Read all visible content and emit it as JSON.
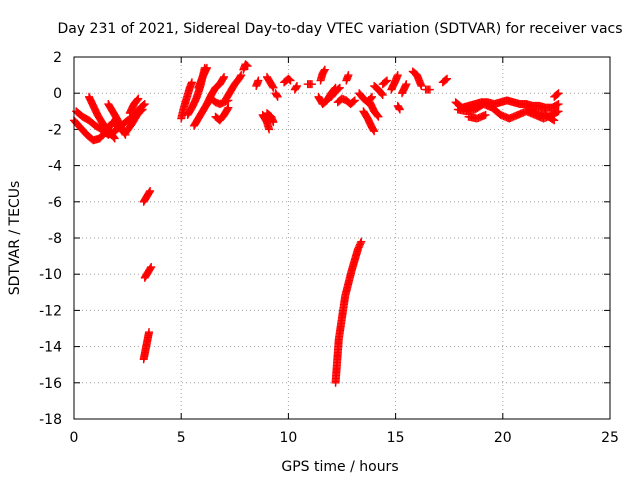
{
  "chart_data": {
    "type": "scatter",
    "title": "Day 231 of 2021, Sidereal Day-to-day VTEC variation (SDTVAR) for receiver vacs",
    "xlabel": "GPS time / hours",
    "ylabel": "SDTVAR / TECUs",
    "xlim": [
      0,
      25
    ],
    "ylim": [
      -18,
      2
    ],
    "x_ticks": [
      0,
      5,
      10,
      15,
      20,
      25
    ],
    "y_ticks": [
      -18,
      -16,
      -14,
      -12,
      -10,
      -8,
      -6,
      -4,
      -2,
      0,
      2
    ],
    "grid": true,
    "marker": "plus",
    "colors": {
      "series": "#ff0000",
      "grid": "#a0a0a0",
      "axes": "#000000"
    },
    "series": [
      {
        "name": "SDTVAR",
        "segments": [
          [
            [
              0.0,
              -1.5
            ],
            [
              0.3,
              -1.9
            ],
            [
              0.6,
              -2.3
            ],
            [
              0.9,
              -2.6
            ],
            [
              1.2,
              -2.5
            ],
            [
              1.5,
              -2.1
            ],
            [
              1.8,
              -1.6
            ],
            [
              2.1,
              -1.9
            ],
            [
              2.4,
              -2.2
            ],
            [
              2.7,
              -1.7
            ],
            [
              3.0,
              -1.1
            ],
            [
              3.2,
              -0.9
            ]
          ],
          [
            [
              0.1,
              -1.0
            ],
            [
              0.4,
              -1.3
            ],
            [
              0.7,
              -1.5
            ],
            [
              1.0,
              -1.8
            ],
            [
              1.3,
              -2.0
            ],
            [
              1.6,
              -2.3
            ],
            [
              1.9,
              -2.1
            ],
            [
              2.2,
              -1.8
            ],
            [
              2.5,
              -1.5
            ],
            [
              2.8,
              -1.3
            ],
            [
              3.1,
              -0.8
            ],
            [
              3.3,
              -0.6
            ]
          ],
          [
            [
              0.7,
              -0.2
            ],
            [
              0.9,
              -0.7
            ],
            [
              1.1,
              -1.2
            ],
            [
              1.3,
              -1.6
            ],
            [
              1.5,
              -1.9
            ],
            [
              1.7,
              -2.2
            ],
            [
              1.9,
              -2.5
            ]
          ],
          [
            [
              1.6,
              -0.6
            ],
            [
              1.8,
              -1.0
            ],
            [
              2.0,
              -1.4
            ],
            [
              2.2,
              -1.9
            ],
            [
              2.4,
              -2.3
            ]
          ],
          [
            [
              2.6,
              -1.1
            ],
            [
              2.8,
              -0.6
            ],
            [
              3.0,
              -0.3
            ]
          ],
          [
            [
              3.25,
              -6.0
            ],
            [
              3.35,
              -5.8
            ],
            [
              3.45,
              -5.6
            ],
            [
              3.55,
              -5.4
            ]
          ],
          [
            [
              3.3,
              -10.2
            ],
            [
              3.4,
              -10.0
            ],
            [
              3.5,
              -9.8
            ],
            [
              3.6,
              -9.6
            ]
          ],
          [
            [
              3.25,
              -14.7
            ],
            [
              3.3,
              -14.4
            ],
            [
              3.35,
              -14.1
            ],
            [
              3.4,
              -13.8
            ],
            [
              3.45,
              -13.5
            ],
            [
              3.5,
              -13.2
            ]
          ],
          [
            [
              5.0,
              -1.4
            ],
            [
              5.1,
              -0.9
            ],
            [
              5.2,
              -0.5
            ],
            [
              5.3,
              -0.1
            ],
            [
              5.4,
              0.3
            ],
            [
              5.5,
              0.6
            ]
          ],
          [
            [
              5.3,
              -1.2
            ],
            [
              5.5,
              -0.8
            ],
            [
              5.7,
              -0.3
            ],
            [
              5.9,
              0.4
            ],
            [
              6.0,
              0.9
            ],
            [
              6.2,
              1.4
            ]
          ],
          [
            [
              5.6,
              -1.8
            ],
            [
              5.8,
              -1.4
            ],
            [
              6.0,
              -1.0
            ],
            [
              6.2,
              -0.6
            ]
          ],
          [
            [
              5.8,
              0.3
            ],
            [
              6.0,
              0.9
            ],
            [
              6.1,
              1.4
            ]
          ],
          [
            [
              6.4,
              -0.3
            ],
            [
              6.6,
              -0.5
            ],
            [
              6.8,
              -0.6
            ],
            [
              7.0,
              -0.5
            ],
            [
              7.2,
              -0.4
            ]
          ],
          [
            [
              6.2,
              -0.6
            ],
            [
              6.4,
              -0.1
            ],
            [
              6.6,
              0.3
            ],
            [
              6.8,
              0.5
            ],
            [
              7.0,
              0.9
            ]
          ],
          [
            [
              6.6,
              -1.3
            ],
            [
              6.8,
              -1.5
            ],
            [
              7.0,
              -1.2
            ],
            [
              7.2,
              -0.8
            ]
          ],
          [
            [
              7.1,
              -0.3
            ],
            [
              7.3,
              0.1
            ],
            [
              7.5,
              0.5
            ],
            [
              7.7,
              0.8
            ],
            [
              7.8,
              1.0
            ]
          ],
          [
            [
              7.9,
              1.3
            ],
            [
              8.0,
              1.6
            ],
            [
              8.1,
              1.5
            ]
          ],
          [
            [
              8.5,
              0.4
            ],
            [
              8.6,
              0.7
            ]
          ],
          [
            [
              9.0,
              0.9
            ],
            [
              9.2,
              0.5
            ],
            [
              9.3,
              0.3
            ]
          ],
          [
            [
              9.4,
              0.0
            ],
            [
              9.5,
              -0.2
            ]
          ],
          [
            [
              8.8,
              -1.2
            ],
            [
              9.0,
              -1.6
            ],
            [
              9.1,
              -2.0
            ]
          ],
          [
            [
              9.0,
              -1.1
            ],
            [
              9.2,
              -1.3
            ],
            [
              9.3,
              -1.6
            ]
          ],
          [
            [
              9.8,
              0.6
            ],
            [
              10.0,
              0.8
            ],
            [
              10.1,
              0.7
            ]
          ],
          [
            [
              10.3,
              0.2
            ],
            [
              10.4,
              0.4
            ]
          ],
          [
            [
              10.9,
              0.5
            ],
            [
              11.1,
              0.5
            ]
          ],
          [
            [
              11.5,
              0.7
            ],
            [
              11.6,
              1.1
            ],
            [
              11.7,
              1.3
            ]
          ],
          [
            [
              11.4,
              -0.2
            ],
            [
              11.6,
              -0.6
            ],
            [
              11.8,
              -0.4
            ],
            [
              12.0,
              0.0
            ],
            [
              12.2,
              0.3
            ]
          ],
          [
            [
              12.3,
              -0.5
            ],
            [
              12.5,
              -0.3
            ],
            [
              12.7,
              -0.4
            ],
            [
              12.9,
              -0.6
            ],
            [
              13.1,
              -0.4
            ]
          ],
          [
            [
              12.0,
              -0.2
            ],
            [
              12.2,
              0.1
            ],
            [
              12.4,
              0.3
            ]
          ],
          [
            [
              12.7,
              0.7
            ],
            [
              12.8,
              1.0
            ]
          ],
          [
            [
              13.3,
              0.0
            ],
            [
              13.5,
              -0.3
            ],
            [
              13.7,
              -0.5
            ],
            [
              13.9,
              -0.2
            ]
          ],
          [
            [
              13.5,
              -1.0
            ],
            [
              13.7,
              -1.4
            ],
            [
              13.9,
              -1.9
            ],
            [
              14.0,
              -2.1
            ]
          ],
          [
            [
              13.8,
              -0.5
            ],
            [
              14.0,
              -1.0
            ],
            [
              14.2,
              -1.3
            ]
          ],
          [
            [
              14.0,
              0.4
            ],
            [
              14.2,
              0.2
            ],
            [
              14.4,
              -0.1
            ]
          ],
          [
            [
              14.4,
              0.5
            ],
            [
              14.6,
              0.7
            ]
          ],
          [
            [
              14.8,
              0.2
            ],
            [
              15.0,
              0.7
            ],
            [
              15.1,
              1.0
            ]
          ],
          [
            [
              15.3,
              0.0
            ],
            [
              15.5,
              0.5
            ]
          ],
          [
            [
              15.1,
              -0.7
            ],
            [
              15.2,
              -0.9
            ]
          ],
          [
            [
              15.8,
              1.2
            ],
            [
              16.0,
              1.0
            ],
            [
              16.1,
              0.7
            ],
            [
              16.2,
              0.4
            ]
          ],
          [
            [
              16.4,
              0.2
            ],
            [
              16.6,
              0.2
            ]
          ],
          [
            [
              17.2,
              0.6
            ],
            [
              17.4,
              0.8
            ]
          ],
          [
            [
              17.8,
              -0.5
            ],
            [
              18.1,
              -0.8
            ],
            [
              18.4,
              -0.7
            ],
            [
              18.7,
              -0.6
            ],
            [
              19.0,
              -0.5
            ],
            [
              19.3,
              -0.5
            ],
            [
              19.6,
              -0.6
            ],
            [
              19.9,
              -0.5
            ],
            [
              20.2,
              -0.4
            ],
            [
              20.5,
              -0.5
            ],
            [
              20.8,
              -0.6
            ],
            [
              21.1,
              -0.6
            ],
            [
              21.4,
              -0.7
            ],
            [
              21.7,
              -0.7
            ],
            [
              22.0,
              -0.8
            ],
            [
              22.3,
              -0.8
            ],
            [
              22.6,
              -0.6
            ]
          ],
          [
            [
              17.9,
              -0.9
            ],
            [
              18.3,
              -1.0
            ],
            [
              18.7,
              -0.9
            ],
            [
              19.1,
              -0.6
            ],
            [
              19.5,
              -0.8
            ],
            [
              19.9,
              -1.2
            ],
            [
              20.3,
              -1.4
            ],
            [
              20.7,
              -1.2
            ],
            [
              21.1,
              -1.0
            ],
            [
              21.5,
              -1.2
            ],
            [
              21.9,
              -1.4
            ],
            [
              22.3,
              -1.2
            ],
            [
              22.6,
              -1.0
            ]
          ],
          [
            [
              18.4,
              -1.3
            ],
            [
              18.8,
              -1.4
            ],
            [
              19.2,
              -1.2
            ]
          ],
          [
            [
              21.2,
              -0.9
            ],
            [
              21.6,
              -1.1
            ],
            [
              22.0,
              -1.2
            ],
            [
              22.4,
              -1.5
            ]
          ],
          [
            [
              22.4,
              -0.2
            ],
            [
              22.6,
              0.0
            ]
          ],
          [
            [
              12.2,
              -16.0
            ],
            [
              12.25,
              -15.2
            ],
            [
              12.3,
              -14.4
            ],
            [
              12.35,
              -13.6
            ],
            [
              12.45,
              -12.8
            ],
            [
              12.55,
              -12.0
            ],
            [
              12.65,
              -11.2
            ],
            [
              12.8,
              -10.5
            ],
            [
              12.95,
              -9.8
            ],
            [
              13.1,
              -9.2
            ],
            [
              13.25,
              -8.6
            ],
            [
              13.4,
              -8.2
            ]
          ]
        ]
      }
    ]
  }
}
